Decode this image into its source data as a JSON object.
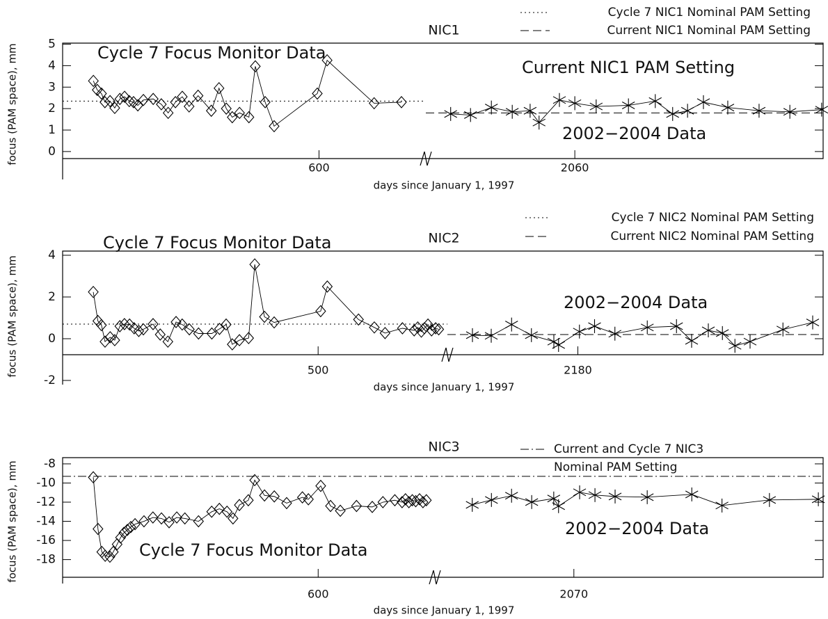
{
  "chart_data": [
    {
      "type": "line",
      "title": "NIC1",
      "xlabel": "days since January 1, 1997",
      "ylabel": "focus (PAM space), mm",
      "ylim": [
        -1.3,
        5.05
      ],
      "yticks": [
        0,
        1,
        2,
        3,
        4,
        5
      ],
      "segments": [
        {
          "xlim": [
            0,
            850
          ],
          "xticks": [
            600
          ],
          "series": [
            {
              "name": "Cycle 7 Focus Monitor Data",
              "marker": "diamond",
              "x": [
                72,
                81,
                91,
                99,
                111,
                122,
                134,
                145,
                156,
                166,
                176,
                189,
                212,
                231,
                247,
                264,
                280,
                296,
                317,
                348,
                366,
                383,
                397,
                414,
                436,
                451,
                474,
                495,
                596,
                619,
                729,
                793
              ],
              "values": [
                3.29,
                2.87,
                2.7,
                2.3,
                2.35,
                2.03,
                2.45,
                2.55,
                2.35,
                2.3,
                2.15,
                2.4,
                2.45,
                2.2,
                1.8,
                2.3,
                2.55,
                2.1,
                2.6,
                1.9,
                2.95,
                2.0,
                1.6,
                1.8,
                1.6,
                3.97,
                2.3,
                1.18,
                2.7,
                4.25,
                2.25,
                2.3
              ]
            }
          ]
        },
        {
          "xlim": [
            1760,
            2560
          ],
          "xticks": [
            2060
          ],
          "series": [
            {
              "name": "2002−2004 Data",
              "marker": "asterisk",
              "x": [
                1810,
                1850,
                1892,
                1934,
                1970,
                1988,
                2029,
                2060,
                2103,
                2168,
                2222,
                2257,
                2287,
                2319,
                2368,
                2431,
                2493,
                2557
              ],
              "values": [
                1.75,
                1.7,
                2.05,
                1.85,
                1.9,
                1.35,
                2.4,
                2.25,
                2.1,
                2.15,
                2.35,
                1.75,
                1.9,
                2.3,
                2.05,
                1.9,
                1.85,
                1.95
              ]
            }
          ]
        }
      ],
      "reference_lines": [
        {
          "name": "Cycle 7 NIC1 Nominal PAM Setting",
          "value": 2.35,
          "style": "dotted",
          "segment": 0
        },
        {
          "name": "Current NIC1 Nominal PAM Setting",
          "value": 1.8,
          "style": "dashed",
          "segment": 1
        }
      ],
      "annotations": [
        "Current NIC1 PAM Setting"
      ]
    },
    {
      "type": "line",
      "title": "NIC2",
      "xlabel": "days since January 1, 1997",
      "ylabel": "focus (PAM space), mm",
      "ylim": [
        -2.2,
        4.2
      ],
      "yticks": [
        -2,
        0,
        2,
        4
      ],
      "segments": [
        {
          "xlim": [
            0,
            753
          ],
          "xticks": [
            500
          ],
          "series": [
            {
              "name": "Cycle 7 Focus Monitor Data",
              "marker": "diamond",
              "x": [
                60,
                69,
                76,
                83,
                93,
                102,
                112,
                121,
                131,
                140,
                149,
                158,
                177,
                191,
                206,
                222,
                234,
                248,
                266,
                292,
                307,
                320,
                332,
                346,
                364,
                376,
                395,
                414,
                505,
                518,
                579,
                610,
                631,
                665,
                688,
                695,
                702,
                708,
                715,
                722,
                730,
                736
              ],
              "values": [
                2.24,
                0.85,
                0.65,
                -0.14,
                0.07,
                -0.07,
                0.6,
                0.7,
                0.68,
                0.5,
                0.37,
                0.45,
                0.7,
                0.2,
                -0.14,
                0.8,
                0.68,
                0.45,
                0.25,
                0.25,
                0.47,
                0.68,
                -0.27,
                -0.07,
                0.03,
                3.56,
                1.05,
                0.78,
                1.32,
                2.5,
                0.92,
                0.54,
                0.27,
                0.5,
                0.4,
                0.54,
                0.34,
                0.5,
                0.68,
                0.4,
                0.5,
                0.45
              ]
            }
          ]
        },
        {
          "xlim": [
            1930,
            2650
          ],
          "xticks": [
            2180
          ],
          "series": [
            {
              "name": "2002−2004 Data",
              "marker": "asterisk",
              "x": [
                1978,
                2014,
                2053,
                2091,
                2134,
                2143,
                2183,
                2212,
                2251,
                2313,
                2369,
                2398,
                2430,
                2457,
                2481,
                2510,
                2573,
                2630
              ],
              "values": [
                0.17,
                0.14,
                0.68,
                0.17,
                -0.14,
                -0.3,
                0.34,
                0.6,
                0.24,
                0.54,
                0.6,
                -0.1,
                0.4,
                0.27,
                -0.34,
                -0.14,
                0.44,
                0.78
              ]
            }
          ]
        }
      ],
      "reference_lines": [
        {
          "name": "Cycle 7 NIC2 Nominal PAM Setting",
          "value": 0.7,
          "style": "dotted",
          "segment": 0
        },
        {
          "name": "Current NIC2 Nominal PAM Setting",
          "value": 0.2,
          "style": "dashed",
          "segment": 1
        }
      ],
      "annotations": []
    },
    {
      "type": "line",
      "title": "NIC3",
      "xlabel": "days since January 1, 1997",
      "ylabel": "focus (PAM space), mm",
      "ylim": [
        -20.5,
        -7.35
      ],
      "yticks": [
        -8,
        -10,
        -12,
        -14,
        -16,
        -18
      ],
      "segments": [
        {
          "xlim": [
            0,
            874
          ],
          "xticks": [
            600
          ],
          "series": [
            {
              "name": "Cycle 7 Focus Monitor Data",
              "marker": "diamond",
              "x": [
                72,
                83,
                92,
                100,
                111,
                119,
                128,
                136,
                144,
                152,
                160,
                170,
                191,
                212,
                232,
                250,
                268,
                287,
                319,
                350,
                368,
                386,
                400,
                415,
                436,
                451,
                474,
                497,
                526,
                563,
                577,
                606,
                629,
                652,
                690,
                727,
                752,
                780,
                797,
                805,
                813,
                821,
                829,
                838,
                846,
                854
              ],
              "values": [
                -9.4,
                -14.8,
                -17.2,
                -17.6,
                -17.7,
                -17.2,
                -16.4,
                -15.7,
                -15.2,
                -14.9,
                -14.6,
                -14.3,
                -14.0,
                -13.6,
                -13.7,
                -14.1,
                -13.6,
                -13.7,
                -14.0,
                -13.0,
                -12.7,
                -13.0,
                -13.7,
                -12.3,
                -11.8,
                -9.7,
                -11.3,
                -11.4,
                -12.1,
                -11.5,
                -11.7,
                -10.3,
                -12.4,
                -12.9,
                -12.4,
                -12.5,
                -12.0,
                -11.8,
                -12.0,
                -11.7,
                -12.0,
                -11.8,
                -11.9,
                -11.7,
                -12.0,
                -11.8
              ]
            }
          ]
        },
        {
          "xlim": [
            1780,
            2590
          ],
          "xticks": [
            2070
          ],
          "series": [
            {
              "name": "2002−2004 Data",
              "marker": "asterisk",
              "x": [
                1858,
                1898,
                1940,
                1982,
                2028,
                2038,
                2082,
                2114,
                2156,
                2223,
                2316,
                2379,
                2478,
                2580
              ],
              "values": [
                -12.28,
                -11.77,
                -11.33,
                -11.99,
                -11.62,
                -12.42,
                -10.97,
                -11.26,
                -11.41,
                -11.48,
                -11.19,
                -12.35,
                -11.77,
                -11.7
              ]
            }
          ]
        }
      ],
      "reference_lines": [
        {
          "name": [
            "Current and Cycle 7 NIC3",
            "Nominal PAM Setting"
          ],
          "value": -9.3,
          "style": "dashdot"
        }
      ],
      "annotations": []
    }
  ]
}
